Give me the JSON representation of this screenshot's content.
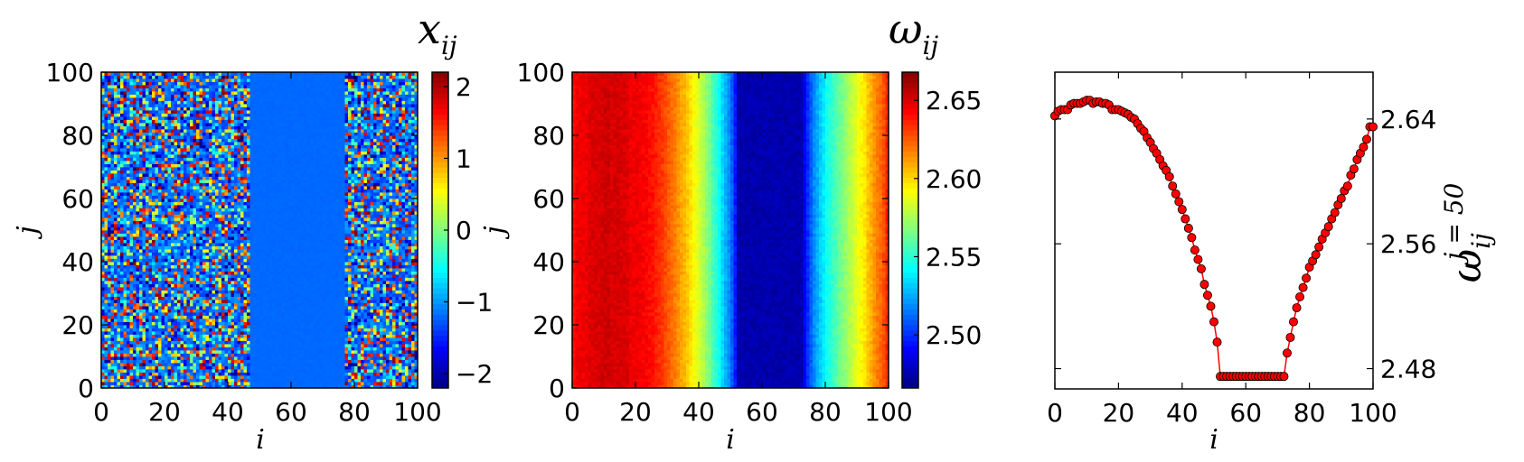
{
  "chart_data": [
    {
      "type": "heatmap",
      "title": "x",
      "title_sub": "ij",
      "xlabel": "i",
      "ylabel": "j",
      "x_range": [
        0,
        100
      ],
      "y_range": [
        0,
        100
      ],
      "xticks": [
        "0",
        "20",
        "40",
        "60",
        "80",
        "100"
      ],
      "yticks": [
        "0",
        "20",
        "40",
        "60",
        "80",
        "100"
      ],
      "colorbar": {
        "label": "j",
        "range": [
          -2.2,
          2.2
        ],
        "ticks": [
          "−2",
          "−1",
          "0",
          "1",
          "2"
        ],
        "tick_values": [
          -2,
          -1,
          0,
          1,
          2
        ]
      },
      "colormap": "jet",
      "regions": [
        {
          "i_from": 0,
          "i_to": 47,
          "pattern": "random",
          "value_range": [
            -2.2,
            2.2
          ]
        },
        {
          "i_from": 47,
          "i_to": 77,
          "pattern": "uniform",
          "value": -1.2
        },
        {
          "i_from": 77,
          "i_to": 100,
          "pattern": "random",
          "value_range": [
            -2.2,
            2.2
          ]
        }
      ]
    },
    {
      "type": "heatmap",
      "title": "ω",
      "title_sub": "ij",
      "xlabel": "i",
      "ylabel": "",
      "x_range": [
        0,
        100
      ],
      "y_range": [
        0,
        100
      ],
      "xticks": [
        "0",
        "20",
        "40",
        "60",
        "80",
        "100"
      ],
      "yticks": [
        "0",
        "20",
        "40",
        "60",
        "80",
        "100"
      ],
      "colorbar": {
        "label": "",
        "range": [
          2.466,
          2.668
        ],
        "ticks": [
          "2.50",
          "2.55",
          "2.60",
          "2.65"
        ],
        "tick_values": [
          2.5,
          2.55,
          2.6,
          2.65
        ]
      },
      "colormap": "jet",
      "column_profile": "same as omega values of the line panel (constant along j)"
    },
    {
      "type": "line",
      "title": "",
      "xlabel": "i",
      "ylabel": "ω",
      "ylabel_sub": "ij",
      "ylabel_sup": "j = 50",
      "xlim": [
        0,
        100
      ],
      "ylim": [
        2.467,
        2.67
      ],
      "xticks": [
        "0",
        "20",
        "40",
        "60",
        "80",
        "100"
      ],
      "yticks": [
        "2.48",
        "2.56",
        "2.64"
      ],
      "ytick_values": [
        2.48,
        2.56,
        2.64
      ],
      "y_axis_side": "right",
      "color": "#ff0000",
      "x": [
        0,
        1,
        2,
        3,
        4,
        5,
        6,
        7,
        8,
        9,
        10,
        11,
        12,
        13,
        14,
        15,
        16,
        17,
        18,
        19,
        20,
        21,
        22,
        23,
        24,
        25,
        26,
        27,
        28,
        29,
        30,
        31,
        32,
        33,
        34,
        35,
        36,
        37,
        38,
        39,
        40,
        41,
        42,
        43,
        44,
        45,
        46,
        47,
        48,
        49,
        50,
        51,
        52,
        53,
        54,
        55,
        56,
        57,
        58,
        59,
        60,
        61,
        62,
        63,
        64,
        65,
        66,
        67,
        68,
        69,
        70,
        71,
        72,
        73,
        74,
        75,
        76,
        77,
        78,
        79,
        80,
        81,
        82,
        83,
        84,
        85,
        86,
        87,
        88,
        89,
        90,
        91,
        92,
        93,
        94,
        95,
        96,
        97,
        98,
        99,
        100
      ],
      "y": [
        2.642,
        2.645,
        2.646,
        2.646,
        2.646,
        2.649,
        2.65,
        2.65,
        2.65,
        2.651,
        2.652,
        2.652,
        2.65,
        2.651,
        2.651,
        2.65,
        2.65,
        2.649,
        2.646,
        2.646,
        2.646,
        2.645,
        2.644,
        2.643,
        2.641,
        2.64,
        2.637,
        2.634,
        2.632,
        2.628,
        2.625,
        2.621,
        2.618,
        2.614,
        2.61,
        2.607,
        2.603,
        2.597,
        2.592,
        2.587,
        2.582,
        2.576,
        2.57,
        2.564,
        2.556,
        2.55,
        2.544,
        2.534,
        2.527,
        2.52,
        2.51,
        2.497,
        2.475,
        2.475,
        2.475,
        2.475,
        2.475,
        2.475,
        2.475,
        2.475,
        2.475,
        2.475,
        2.475,
        2.475,
        2.475,
        2.475,
        2.475,
        2.475,
        2.475,
        2.475,
        2.475,
        2.475,
        2.475,
        2.49,
        2.5,
        2.51,
        2.519,
        2.526,
        2.532,
        2.538,
        2.545,
        2.549,
        2.553,
        2.558,
        2.563,
        2.567,
        2.571,
        2.576,
        2.58,
        2.585,
        2.589,
        2.594,
        2.597,
        2.604,
        2.608,
        2.614,
        2.618,
        2.622,
        2.627,
        2.635,
        2.635
      ]
    }
  ]
}
